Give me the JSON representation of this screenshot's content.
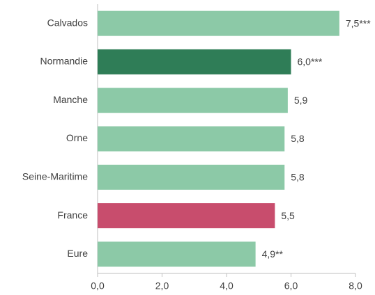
{
  "chart_data": {
    "type": "barh",
    "categories": [
      "Calvados",
      "Normandie",
      "Manche",
      "Orne",
      "Seine-Maritime",
      "France",
      "Eure"
    ],
    "values": [
      7.5,
      6.0,
      5.9,
      5.8,
      5.8,
      5.5,
      4.9
    ],
    "value_labels": [
      "7,5***",
      "6,0***",
      "5,9",
      "5,8",
      "5,8",
      "5,5",
      "4,9**"
    ],
    "colors": [
      "#8cc9a7",
      "#2f7d57",
      "#8cc9a7",
      "#8cc9a7",
      "#8cc9a7",
      "#c84d6d",
      "#8cc9a7"
    ],
    "xlim": [
      0,
      8
    ],
    "xticks": [
      {
        "value": 0,
        "label": "0,0"
      },
      {
        "value": 2,
        "label": "2,0"
      },
      {
        "value": 4,
        "label": "4,0"
      },
      {
        "value": 6,
        "label": "6,0"
      },
      {
        "value": 8,
        "label": "8,0"
      }
    ],
    "grid": false
  }
}
